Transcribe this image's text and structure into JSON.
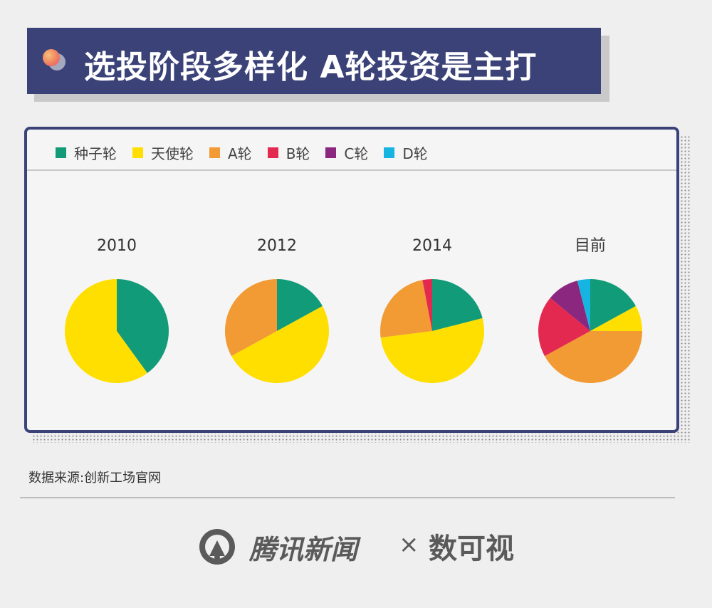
{
  "title": "选投阶段多样化 A轮投资是主打",
  "source": "数据来源:创新工场官网",
  "brand": {
    "tencent": "腾讯新闻",
    "separator": "×",
    "partner": "数可视"
  },
  "chart_data": {
    "type": "pie",
    "legend_position": "top-left",
    "legend": [
      {
        "label": "种子轮",
        "color": "#129b78"
      },
      {
        "label": "天使轮",
        "color": "#ffdf00"
      },
      {
        "label": "A轮",
        "color": "#f29a33"
      },
      {
        "label": "B轮",
        "color": "#e3294f"
      },
      {
        "label": "C轮",
        "color": "#8b277e"
      },
      {
        "label": "D轮",
        "color": "#16b4e0"
      }
    ],
    "pies": [
      {
        "label": "2010",
        "values": [
          40,
          60,
          0,
          0,
          0,
          0
        ]
      },
      {
        "label": "2012",
        "values": [
          17,
          50,
          33,
          0,
          0,
          0
        ]
      },
      {
        "label": "2014",
        "values": [
          21,
          52,
          24,
          3,
          0,
          0
        ]
      },
      {
        "label": "目前",
        "values": [
          17,
          8,
          42,
          19,
          10,
          4
        ]
      }
    ]
  }
}
